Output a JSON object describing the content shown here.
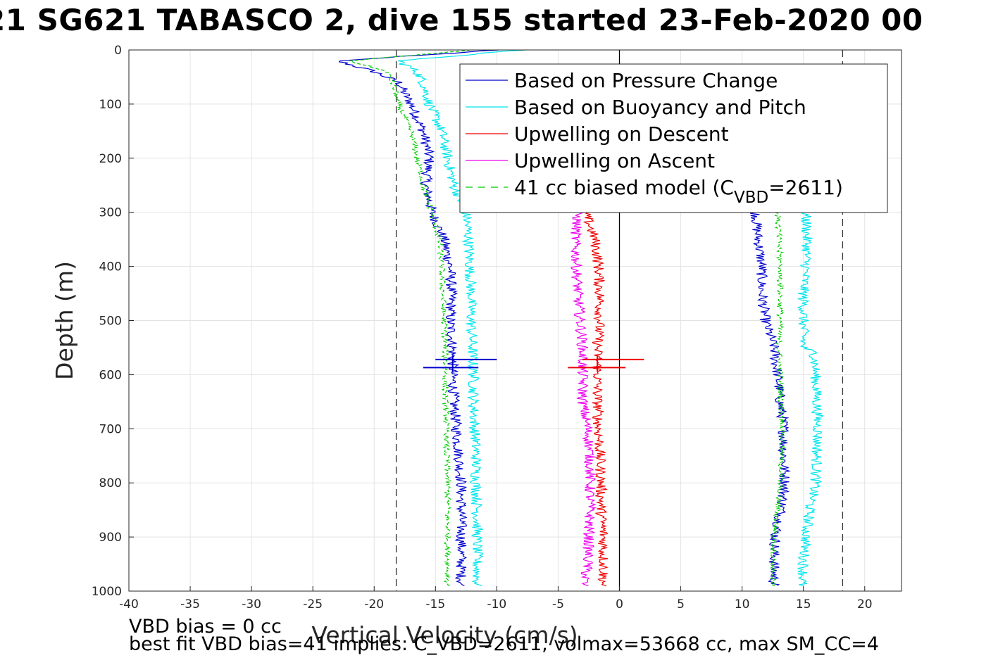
{
  "chart_data": {
    "type": "line",
    "title": "21 SG621 TABASCO 2, dive 155 started 23-Feb-2020 00",
    "xlabel": "Vertical Velocity (cm/s)",
    "ylabel": "Depth (m)",
    "xlim": [
      -40,
      23
    ],
    "ylim": [
      0,
      1000
    ],
    "y_reversed": true,
    "grid": true,
    "x_ticks": [
      "-40",
      "-35",
      "-30",
      "-25",
      "-20",
      "-15",
      "-10",
      "-5",
      "0",
      "5",
      "10",
      "15",
      "20"
    ],
    "y_ticks": [
      "0",
      "100",
      "200",
      "300",
      "400",
      "500",
      "600",
      "700",
      "800",
      "900",
      "1000"
    ],
    "vertical_reference_lines": [
      -18.2,
      18.2
    ],
    "zero_line": 0,
    "legend_position": "top-right",
    "legend": [
      {
        "label": "Based on Pressure Change",
        "color": "#0000cc",
        "style": "solid"
      },
      {
        "label": "Based on Buoyancy and Pitch",
        "color": "#00e5ee",
        "style": "solid"
      },
      {
        "label": "Upwelling on Descent",
        "color": "#ee0000",
        "style": "solid"
      },
      {
        "label": "Upwelling on Ascent",
        "color": "#ee00ee",
        "style": "solid"
      },
      {
        "label": "41 cc biased model (C",
        "sub": "VBD",
        "tail": "=2611)",
        "color": "#00cc00",
        "style": "dashed"
      }
    ],
    "series": [
      {
        "name": "Based on Pressure Change",
        "color": "#0000cc",
        "descent": {
          "depth": [
            0,
            20,
            40,
            60,
            100,
            150,
            200,
            250,
            300,
            350,
            400,
            450,
            500,
            550,
            600,
            650,
            700,
            750,
            800,
            850,
            900,
            950,
            990
          ],
          "velocity": [
            -10,
            -23,
            -20,
            -18,
            -17,
            -16,
            -15.5,
            -15.8,
            -15.3,
            -14.3,
            -13.8,
            -13.7,
            -13.8,
            -13.6,
            -13.6,
            -13.5,
            -13.3,
            -13.1,
            -12.9,
            -12.9,
            -12.9,
            -12.9,
            -12.9
          ]
        },
        "ascent": {
          "depth": [
            990,
            950,
            900,
            850,
            800,
            750,
            700,
            650,
            600,
            550,
            500,
            450,
            400,
            350,
            300
          ],
          "velocity": [
            12.6,
            12.6,
            12.7,
            13.2,
            13.5,
            13.4,
            13.4,
            13.1,
            12.9,
            12.6,
            11.9,
            11.6,
            11.6,
            11.3,
            11.1
          ]
        }
      },
      {
        "name": "Based on Buoyancy and Pitch",
        "color": "#00e5ee",
        "descent": {
          "depth": [
            0,
            20,
            40,
            60,
            100,
            150,
            200,
            250,
            300,
            350,
            400,
            450,
            500,
            550,
            600,
            650,
            700,
            750,
            800,
            850,
            900,
            950,
            990
          ],
          "velocity": [
            -8,
            -18,
            -16.5,
            -16,
            -15.5,
            -14.5,
            -14,
            -13.5,
            -12.5,
            -12.3,
            -12.2,
            -12.1,
            -12.1,
            -12,
            -11.9,
            -11.9,
            -11.8,
            -11.7,
            -11.7,
            -11.6,
            -11.6,
            -11.6,
            -11.6
          ]
        },
        "ascent": {
          "depth": [
            990,
            950,
            900,
            850,
            800,
            750,
            700,
            650,
            600,
            560,
            550,
            500,
            450,
            400,
            350,
            300
          ],
          "velocity": [
            14.9,
            15,
            15.2,
            15.5,
            16,
            16.1,
            16.2,
            16.1,
            16,
            15.9,
            15,
            15,
            15,
            15.2,
            15.3,
            15.2
          ]
        }
      },
      {
        "name": "Upwelling on Descent",
        "color": "#ee0000",
        "descent": {
          "depth": [
            300,
            350,
            400,
            450,
            500,
            550,
            600,
            650,
            700,
            750,
            800,
            850,
            900,
            950,
            990
          ],
          "velocity": [
            -2.8,
            -2,
            -1.7,
            -1.6,
            -1.6,
            -1.8,
            -1.8,
            -1.8,
            -1.7,
            -1.6,
            -1.5,
            -1.5,
            -1.3,
            -1.3,
            -1.3
          ]
        }
      },
      {
        "name": "Upwelling on Ascent",
        "color": "#ee00ee",
        "ascent": {
          "depth": [
            990,
            950,
            900,
            850,
            800,
            750,
            700,
            650,
            600,
            550,
            500,
            450,
            400,
            350,
            300
          ],
          "velocity": [
            -2.9,
            -2.6,
            -2.5,
            -2.4,
            -2.4,
            -2.4,
            -2.6,
            -3,
            -3,
            -3,
            -3.2,
            -3.4,
            -3.5,
            -3.6,
            -3.4
          ]
        }
      },
      {
        "name": "41 cc biased model (CVBD=2611)",
        "color": "#00cc00",
        "descent": {
          "depth": [
            0,
            20,
            40,
            60,
            100,
            150,
            200,
            250,
            300,
            350,
            400,
            450,
            500,
            550,
            600,
            650,
            700,
            750,
            800,
            850,
            900,
            950,
            990
          ],
          "velocity": [
            -12,
            -22,
            -19,
            -18.5,
            -18,
            -17,
            -16.5,
            -16,
            -15.3,
            -14.7,
            -14.5,
            -14.4,
            -14.3,
            -14.2,
            -14.2,
            -14.2,
            -14.1,
            -14.1,
            -14,
            -14,
            -14,
            -14,
            -14
          ]
        },
        "ascent": {
          "depth": [
            990,
            950,
            900,
            850,
            800,
            750,
            700,
            650,
            600,
            550,
            500,
            450,
            400,
            350,
            300
          ],
          "velocity": [
            12.5,
            12.5,
            12.6,
            12.9,
            13.1,
            13.2,
            13.3,
            13.2,
            13.1,
            13,
            13.1,
            13.1,
            13.1,
            13,
            12.9
          ]
        }
      }
    ],
    "error_bars": [
      {
        "depth": 572,
        "xmin": -15,
        "xmax": -10,
        "center": -13.6,
        "color": "#0000cc"
      },
      {
        "depth": 587,
        "xmin": -16,
        "xmax": -11.5,
        "center": -13.6,
        "color": "#0000cc"
      },
      {
        "depth": 572,
        "xmin": -3,
        "xmax": 2,
        "center": -1.8,
        "color": "#ee0000"
      },
      {
        "depth": 587,
        "xmin": -4.2,
        "xmax": 0.5,
        "center": -1.8,
        "color": "#ee0000"
      }
    ]
  },
  "footer": {
    "line1": "VBD bias = 0 cc",
    "line2": "best fit VBD bias=41 implies: C_VBD=2611, volmax=53668 cc, max SM_CC=4"
  }
}
